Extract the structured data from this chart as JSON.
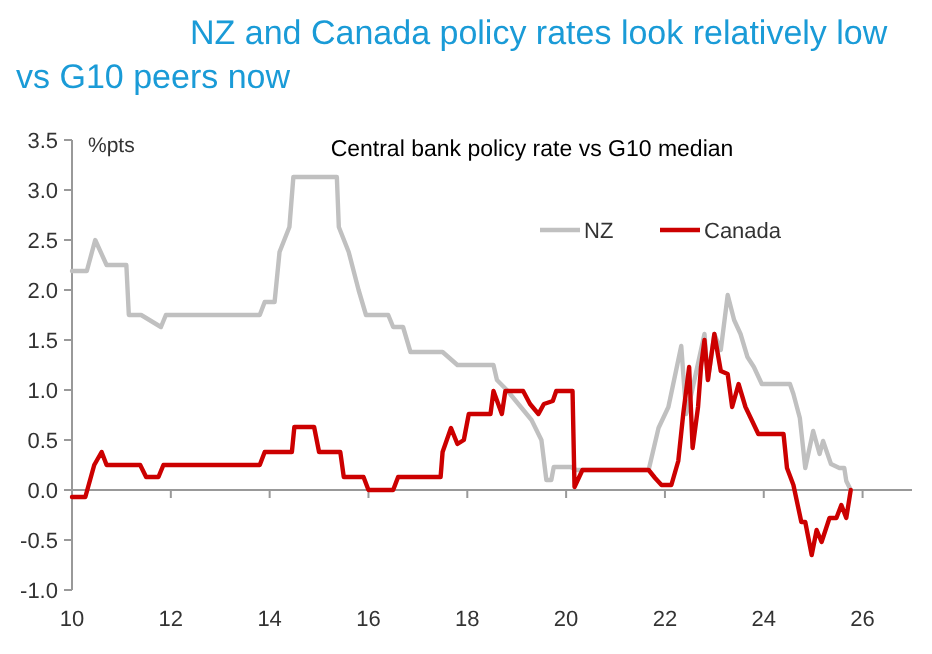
{
  "chart_data": {
    "type": "line",
    "title": "NZ and Canada policy rates look relatively low vs G10 peers now",
    "subtitle": "Central bank policy rate vs G10 median",
    "ylabel": "%pts",
    "xlim": [
      10,
      27
    ],
    "xticks": [
      10,
      12,
      14,
      16,
      18,
      20,
      22,
      24,
      26
    ],
    "ylim": [
      -1,
      3.5
    ],
    "yticks": [
      {
        "value": -1,
        "label": "-1.0"
      },
      {
        "value": -0.5,
        "label": "-0.5"
      },
      {
        "value": 0,
        "label": "0.0"
      },
      {
        "value": 0.5,
        "label": "0.5"
      },
      {
        "value": 1,
        "label": "1.0"
      },
      {
        "value": 1.5,
        "label": "1.5"
      },
      {
        "value": 2,
        "label": "2.0"
      },
      {
        "value": 2.5,
        "label": "2.5"
      },
      {
        "value": 3,
        "label": "3.0"
      },
      {
        "value": 3.5,
        "label": "3.5"
      }
    ],
    "legend": "top right",
    "marker": "none",
    "line_style": "solid",
    "series": [
      {
        "name": "NZ",
        "color": "#c0c0c0",
        "x": [
          10,
          10.3,
          10.47,
          10.7,
          11.1,
          11.15,
          11.4,
          11.8,
          11.9,
          13.8,
          13.9,
          14.1,
          14.2,
          14.4,
          14.48,
          15.36,
          15.4,
          15.6,
          15.8,
          15.95,
          16.4,
          16.5,
          16.7,
          16.85,
          17.5,
          17.8,
          18.53,
          18.6,
          18.8,
          19.3,
          19.5,
          19.6,
          19.7,
          19.75,
          20.1,
          20.2,
          21.67,
          21.87,
          22.07,
          22.33,
          22.43,
          22.53,
          22.8,
          22.87,
          23.0,
          23.13,
          23.27,
          23.4,
          23.53,
          23.67,
          23.8,
          23.96,
          24.53,
          24.6,
          24.73,
          24.84,
          25.0,
          25.13,
          25.2,
          25.36,
          25.53,
          25.63,
          25.67,
          25.76
        ],
        "values": [
          2.19,
          2.19,
          2.5,
          2.25,
          2.25,
          1.75,
          1.75,
          1.63,
          1.75,
          1.75,
          1.88,
          1.88,
          2.38,
          2.63,
          3.13,
          3.13,
          2.63,
          2.38,
          2.0,
          1.75,
          1.75,
          1.63,
          1.63,
          1.38,
          1.38,
          1.25,
          1.25,
          1.1,
          1.0,
          0.7,
          0.5,
          0.1,
          0.1,
          0.23,
          0.23,
          0.2,
          0.2,
          0.62,
          0.83,
          1.44,
          0.76,
          0.95,
          1.56,
          1.1,
          1.56,
          1.4,
          1.95,
          1.7,
          1.56,
          1.33,
          1.23,
          1.06,
          1.06,
          0.96,
          0.72,
          0.22,
          0.59,
          0.36,
          0.49,
          0.26,
          0.22,
          0.22,
          0.09,
          0
        ]
      },
      {
        "name": "Canada",
        "color": "#cc0000",
        "x": [
          10,
          10.27,
          10.45,
          10.6,
          10.7,
          11.38,
          11.5,
          11.75,
          11.85,
          13.8,
          13.9,
          14.45,
          14.5,
          14.9,
          15.0,
          15.43,
          15.5,
          15.9,
          16.0,
          16.5,
          16.6,
          17.46,
          17.5,
          17.67,
          17.8,
          17.93,
          18.03,
          18.47,
          18.53,
          18.7,
          18.77,
          19.13,
          19.27,
          19.44,
          19.55,
          19.73,
          19.8,
          20.13,
          20.17,
          20.33,
          21.67,
          21.8,
          21.93,
          22.13,
          22.27,
          22.37,
          22.49,
          22.56,
          22.67,
          22.73,
          22.8,
          22.87,
          23.0,
          23.13,
          23.27,
          23.36,
          23.49,
          23.63,
          23.89,
          24.4,
          24.47,
          24.6,
          24.76,
          24.84,
          24.97,
          25.07,
          25.17,
          25.33,
          25.47,
          25.57,
          25.67,
          25.76
        ],
        "values": [
          -0.07,
          -0.07,
          0.25,
          0.38,
          0.25,
          0.25,
          0.13,
          0.13,
          0.25,
          0.25,
          0.38,
          0.38,
          0.63,
          0.63,
          0.38,
          0.38,
          0.13,
          0.13,
          0,
          0,
          0.13,
          0.13,
          0.38,
          0.62,
          0.46,
          0.5,
          0.76,
          0.76,
          0.99,
          0.76,
          0.99,
          0.99,
          0.86,
          0.76,
          0.86,
          0.89,
          0.99,
          0.99,
          0.03,
          0.2,
          0.2,
          0.12,
          0.05,
          0.05,
          0.29,
          0.76,
          1.23,
          0.42,
          0.83,
          1.23,
          1.5,
          1.1,
          1.56,
          1.19,
          1.16,
          0.83,
          1.06,
          0.83,
          0.56,
          0.56,
          0.22,
          0.05,
          -0.32,
          -0.32,
          -0.65,
          -0.4,
          -0.52,
          -0.28,
          -0.28,
          -0.15,
          -0.28,
          0
        ]
      }
    ]
  }
}
